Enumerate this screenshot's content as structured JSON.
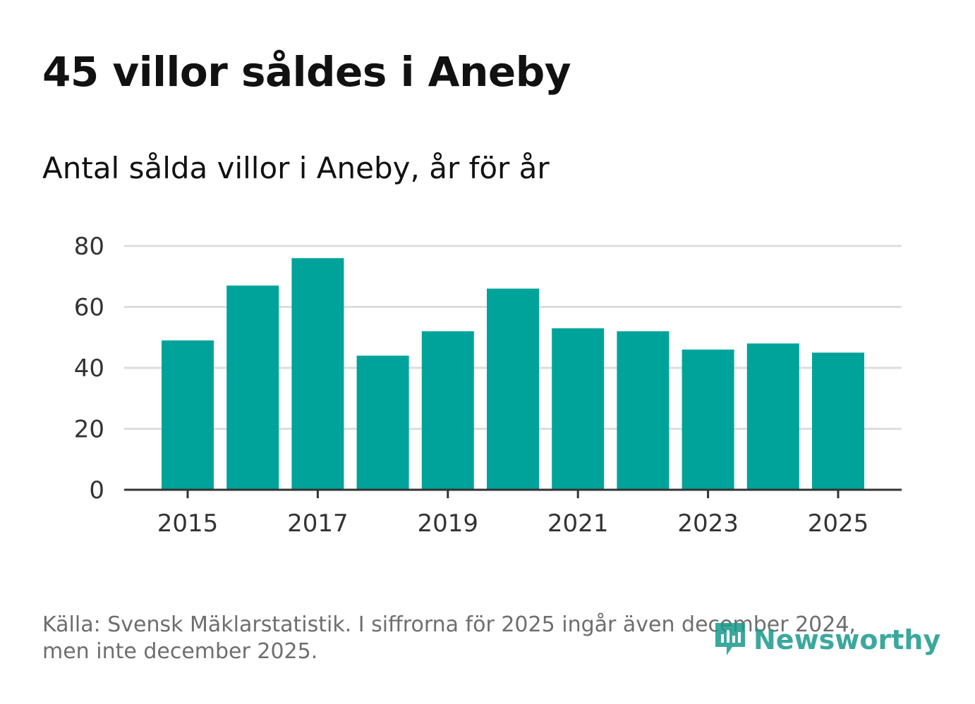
{
  "header": {
    "title": "45 villor såldes i Aneby",
    "subtitle": "Antal sålda villor i Aneby, år för år"
  },
  "footer": {
    "source_line1": "Källa: Svensk Mäklarstatistik. I siffrorna för 2025 ingår även december 2024,",
    "source_line2": "men inte december 2025.",
    "logo_text": "Newsworthy"
  },
  "colors": {
    "bar": "#00a39a",
    "grid": "#dddddd",
    "axis": "#333333",
    "logo": "#1a9a8c"
  },
  "chart_data": {
    "type": "bar",
    "title": "Antal sålda villor i Aneby, år för år",
    "xlabel": "",
    "ylabel": "",
    "categories": [
      "2015",
      "2016",
      "2017",
      "2018",
      "2019",
      "2020",
      "2021",
      "2022",
      "2023",
      "2024",
      "2025"
    ],
    "values": [
      49,
      67,
      76,
      44,
      52,
      66,
      53,
      52,
      46,
      48,
      45
    ],
    "x_tick_labels": [
      "2015",
      "2017",
      "2019",
      "2021",
      "2023",
      "2025"
    ],
    "y_ticks": [
      0,
      20,
      40,
      60,
      80
    ],
    "ylim": [
      0,
      80
    ],
    "grid": true
  }
}
